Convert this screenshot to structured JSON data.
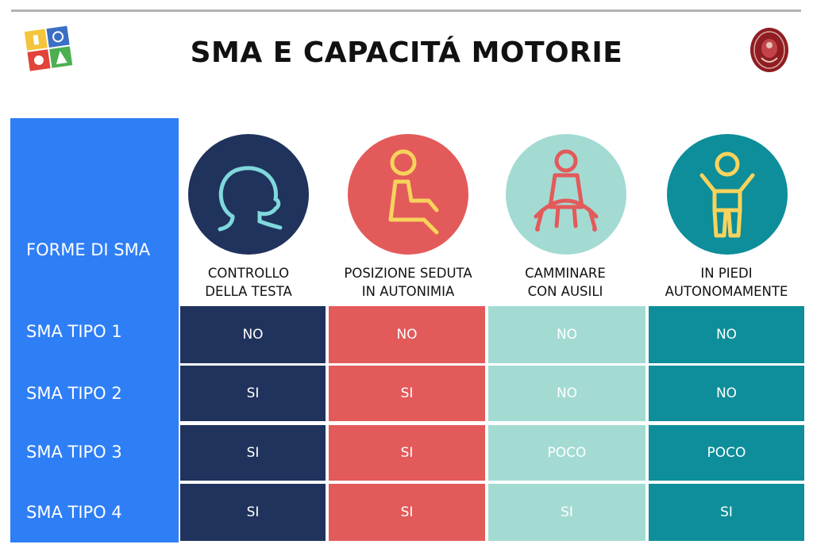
{
  "title": "SMA E CAPACITÁ MOTORIE",
  "row_header": "FORME DI SMA",
  "columns": [
    {
      "line1": "CONTROLLO",
      "line2": "DELLA TESTA",
      "icon": "head-icon",
      "color": "#20335c"
    },
    {
      "line1": "POSIZIONE SEDUTA",
      "line2": "IN AUTONIMIA",
      "icon": "sitting-child-icon",
      "color": "#e35a5a"
    },
    {
      "line1": "CAMMINARE",
      "line2": "CON AUSILI",
      "icon": "walker-child-icon",
      "color": "#a3dbd3"
    },
    {
      "line1": "IN PIEDI",
      "line2": "AUTONOMAMENTE",
      "icon": "standing-child-icon",
      "color": "#0d8e9a"
    }
  ],
  "rows": [
    {
      "label": "SMA TIPO 1",
      "cells": [
        "NO",
        "NO",
        "NO",
        "NO"
      ]
    },
    {
      "label": "SMA TIPO 2",
      "cells": [
        "SI",
        "SI",
        "NO",
        "NO"
      ]
    },
    {
      "label": "SMA TIPO 3",
      "cells": [
        "SI",
        "SI",
        "POCO",
        "POCO"
      ]
    },
    {
      "label": "SMA TIPO 4",
      "cells": [
        "SI",
        "SI",
        "SI",
        "SI"
      ]
    }
  ],
  "accent_color": "#2e7ef6"
}
